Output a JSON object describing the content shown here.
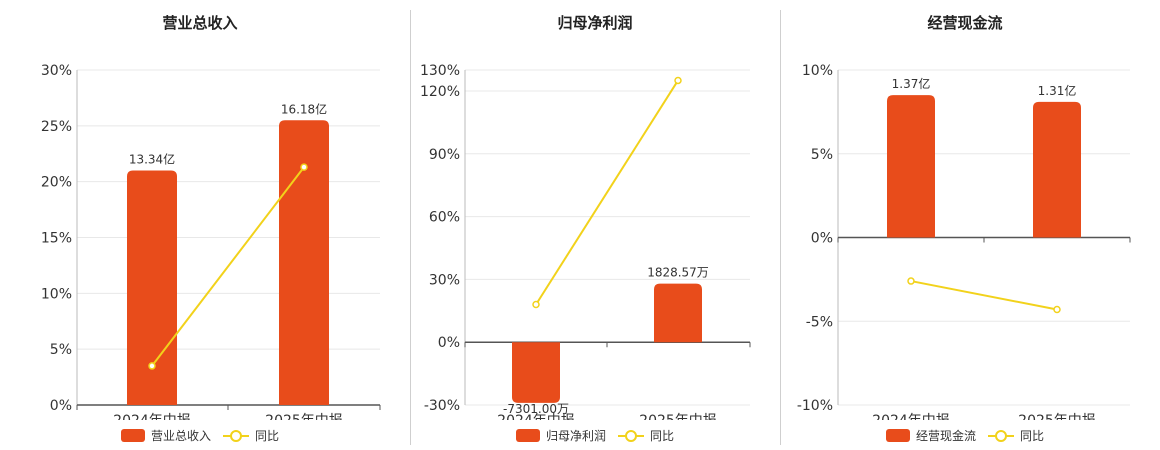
{
  "colors": {
    "bar": "#E84C1B",
    "line": "#F2D21B",
    "axis": "#555555",
    "grid": "#e8e8e8"
  },
  "chart_data": [
    {
      "type": "bar",
      "title": "营业总收入",
      "categories": [
        "2024年中报",
        "2025年中报"
      ],
      "ylim": [
        0,
        30
      ],
      "yticks": [
        "0%",
        "5%",
        "10%",
        "15%",
        "20%",
        "25%",
        "30%"
      ],
      "ytick_values": [
        0,
        5,
        10,
        15,
        20,
        25,
        30
      ],
      "series": [
        {
          "name": "营业总收入",
          "type": "bar",
          "values": [
            21,
            25.5
          ],
          "labels": [
            "13.34亿",
            "16.18亿"
          ]
        },
        {
          "name": "同比",
          "type": "line",
          "values": [
            3.5,
            21.3
          ]
        }
      ],
      "grid": true,
      "legend": "bottom"
    },
    {
      "type": "bar",
      "title": "归母净利润",
      "categories": [
        "2024年中报",
        "2025年中报"
      ],
      "ylim": [
        -30,
        130
      ],
      "yticks": [
        "-30%",
        "0%",
        "30%",
        "60%",
        "90%",
        "120%",
        "130%"
      ],
      "ytick_values": [
        -30,
        0,
        30,
        60,
        90,
        120,
        130
      ],
      "series": [
        {
          "name": "归母净利润",
          "type": "bar",
          "values": [
            -29,
            28
          ],
          "labels": [
            "-7301.00万",
            "1828.57万"
          ]
        },
        {
          "name": "同比",
          "type": "line",
          "values": [
            18,
            125
          ]
        }
      ],
      "grid": true,
      "legend": "bottom"
    },
    {
      "type": "bar",
      "title": "经营现金流",
      "categories": [
        "2024年中报",
        "2025年中报"
      ],
      "ylim": [
        -10,
        10
      ],
      "yticks": [
        "-10%",
        "-5%",
        "0%",
        "5%",
        "10%"
      ],
      "ytick_values": [
        -10,
        -5,
        0,
        5,
        10
      ],
      "series": [
        {
          "name": "经营现金流",
          "type": "bar",
          "values": [
            8.5,
            8.1
          ],
          "labels": [
            "1.37亿",
            "1.31亿"
          ]
        },
        {
          "name": "同比",
          "type": "line",
          "values": [
            -2.6,
            -4.3
          ]
        }
      ],
      "grid": true,
      "legend": "bottom"
    }
  ]
}
